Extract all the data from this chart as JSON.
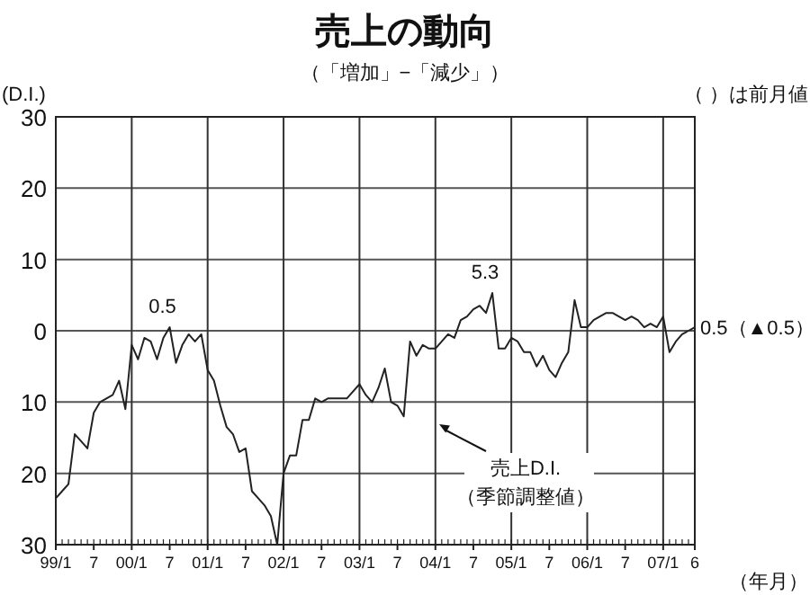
{
  "chart_data": {
    "type": "line",
    "title": "売上の動向",
    "subtitle": "（「増加」−「減少」）",
    "ylabel": "(D.I.)",
    "xlabel": "（年月）",
    "categories": [
      "99/1",
      null,
      null,
      null,
      null,
      null,
      "7",
      null,
      null,
      null,
      null,
      null,
      "00/1",
      null,
      null,
      null,
      null,
      null,
      "7",
      null,
      null,
      null,
      null,
      null,
      "01/1",
      null,
      null,
      null,
      null,
      null,
      "7",
      null,
      null,
      null,
      null,
      null,
      "02/1",
      null,
      null,
      null,
      null,
      null,
      "7",
      null,
      null,
      null,
      null,
      null,
      "03/1",
      null,
      null,
      null,
      null,
      null,
      "7",
      null,
      null,
      null,
      null,
      null,
      "04/1",
      null,
      null,
      null,
      null,
      null,
      "7",
      null,
      null,
      null,
      null,
      null,
      "05/1",
      null,
      null,
      null,
      null,
      null,
      "7",
      null,
      null,
      null,
      null,
      null,
      "06/1",
      null,
      null,
      null,
      null,
      null,
      "7",
      null,
      null,
      null,
      null,
      null,
      "07/1",
      null,
      null,
      null,
      null,
      "6"
    ],
    "series": [
      {
        "color": "#222222",
        "values": [
          -23.5,
          -22.5,
          -21.5,
          -14.5,
          -15.5,
          -16.5,
          -11.5,
          -10,
          -9.5,
          -9,
          -7,
          -11,
          -2,
          -4,
          -1,
          -1.5,
          -4,
          -1,
          0.5,
          -4.5,
          -2,
          -0.5,
          -1.5,
          -0.5,
          -5.5,
          -7,
          -10.5,
          -13.5,
          -14.5,
          -17,
          -16.5,
          -22.5,
          -23.5,
          -24.5,
          -26,
          -30,
          -20,
          -17.5,
          -17.5,
          -12.5,
          -12.5,
          -9.5,
          -10,
          -9.5,
          -9.5,
          -9.5,
          -9.5,
          -8.5,
          -7.5,
          -9,
          -10,
          -8,
          -5.3,
          -10,
          -10.5,
          -12,
          -1.5,
          -3.5,
          -2,
          -2.5,
          -2.5,
          -1.5,
          -0.5,
          -1,
          1.5,
          2,
          3,
          3.5,
          2.5,
          5.3,
          -2.5,
          -2.5,
          -1,
          -1.5,
          -3,
          -3,
          -5,
          -3.5,
          -5.5,
          -6.5,
          -4.5,
          -3,
          4.3,
          0.5,
          0.5,
          1.5,
          2,
          2.5,
          2.5,
          2,
          1.5,
          2,
          1.5,
          0.5,
          1,
          0.5,
          2,
          -3,
          -1.5,
          -0.5,
          0,
          0.5
        ]
      }
    ],
    "ylim": [
      -30,
      30
    ],
    "yticks": [
      {
        "value": -30,
        "label": "30"
      },
      {
        "value": -20,
        "label": "20"
      },
      {
        "value": -10,
        "label": "10"
      },
      0,
      10,
      20,
      30
    ],
    "grid": true,
    "marker": "none",
    "line_style": "solid",
    "annotations": [
      {
        "text": "0.5",
        "y": 0.5
      },
      {
        "text": "5.3",
        "y": 5.3
      },
      "0.5（▲0.5）",
      "売上D.I.",
      "（季節調整値）",
      "（ ）は前月値"
    ]
  }
}
